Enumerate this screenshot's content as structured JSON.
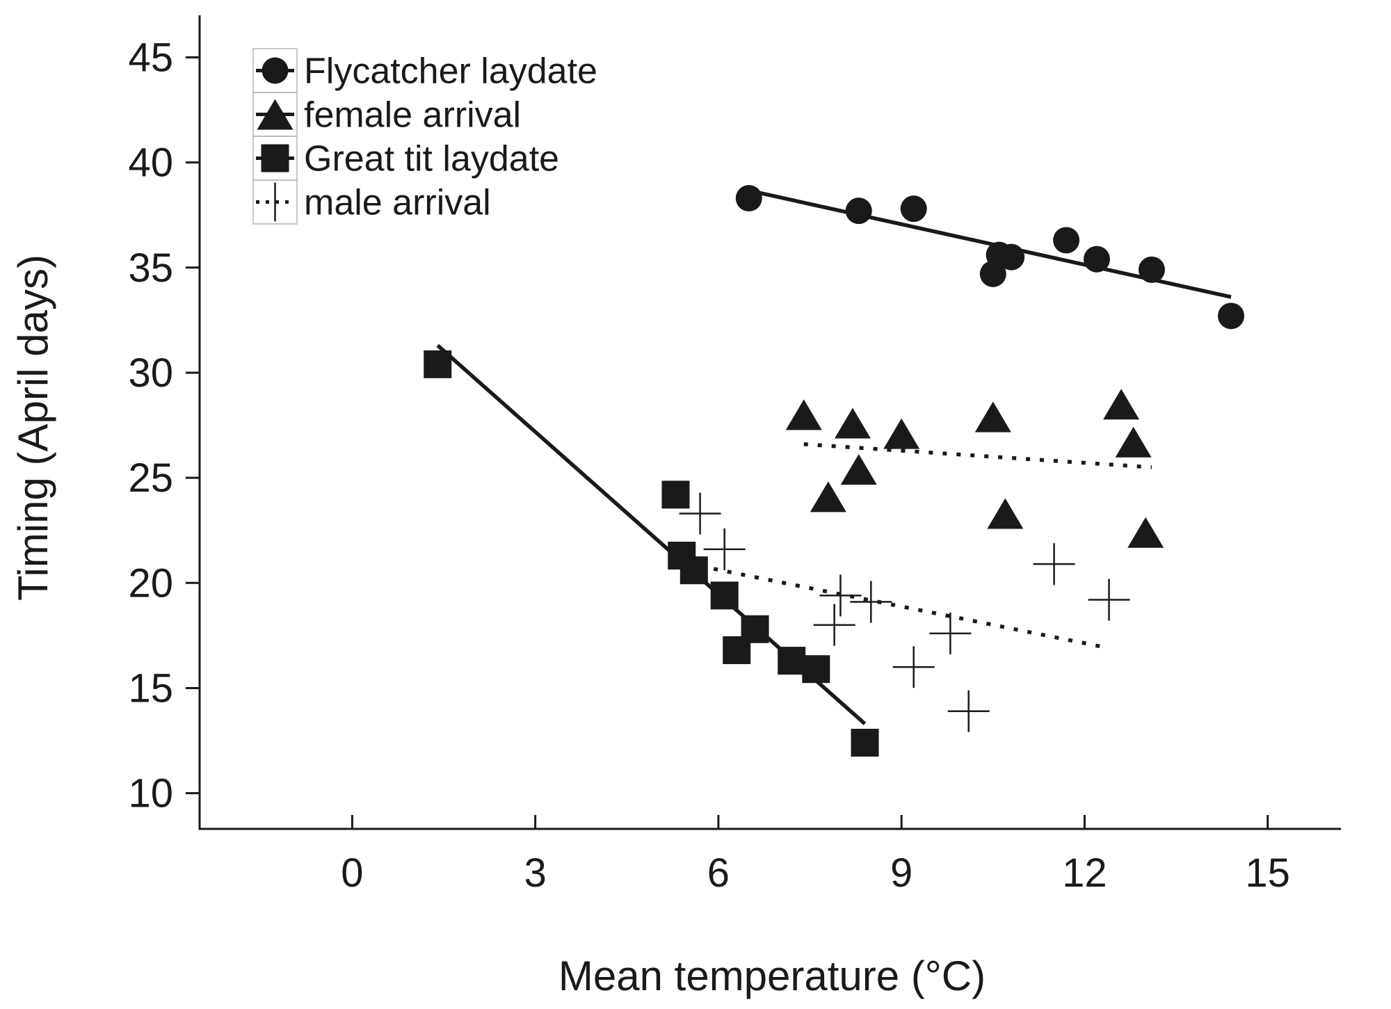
{
  "chart_data": {
    "type": "scatter",
    "xlabel": "Mean temperature (°C)",
    "ylabel": "Timing (April days)",
    "xlim": [
      -2.5,
      16.2
    ],
    "ylim": [
      8.3,
      47
    ],
    "xticks": [
      0,
      3,
      6,
      9,
      12,
      15
    ],
    "yticks": [
      10,
      15,
      20,
      25,
      30,
      35,
      40,
      45
    ],
    "legend_position": "top-left",
    "grid": false,
    "series": [
      {
        "name": "Flycatcher laydate",
        "marker": "circle",
        "line_style": "solid",
        "points": [
          {
            "x": 6.5,
            "y": 38.3
          },
          {
            "x": 8.3,
            "y": 37.7
          },
          {
            "x": 9.2,
            "y": 37.8
          },
          {
            "x": 10.5,
            "y": 34.7
          },
          {
            "x": 10.6,
            "y": 35.6
          },
          {
            "x": 10.8,
            "y": 35.5
          },
          {
            "x": 11.7,
            "y": 36.3
          },
          {
            "x": 12.2,
            "y": 35.4
          },
          {
            "x": 13.1,
            "y": 34.9
          },
          {
            "x": 14.4,
            "y": 32.7
          }
        ],
        "fit": {
          "x": [
            6.6,
            14.4
          ],
          "y": [
            38.6,
            33.6
          ]
        }
      },
      {
        "name": "female arrival",
        "marker": "triangle",
        "line_style": "dotted",
        "points": [
          {
            "x": 7.4,
            "y": 28.0
          },
          {
            "x": 7.8,
            "y": 24.1
          },
          {
            "x": 8.2,
            "y": 27.6
          },
          {
            "x": 8.3,
            "y": 25.4
          },
          {
            "x": 9.0,
            "y": 27.1
          },
          {
            "x": 10.5,
            "y": 27.9
          },
          {
            "x": 10.7,
            "y": 23.3
          },
          {
            "x": 12.6,
            "y": 28.5
          },
          {
            "x": 12.8,
            "y": 26.7
          },
          {
            "x": 13.0,
            "y": 22.4
          }
        ],
        "fit": {
          "x": [
            7.4,
            13.1
          ],
          "y": [
            26.6,
            25.5
          ]
        }
      },
      {
        "name": "Great tit laydate",
        "marker": "square",
        "line_style": "solid",
        "points": [
          {
            "x": 1.4,
            "y": 30.4
          },
          {
            "x": 5.3,
            "y": 24.2
          },
          {
            "x": 5.4,
            "y": 21.3
          },
          {
            "x": 5.6,
            "y": 20.6
          },
          {
            "x": 6.1,
            "y": 19.4
          },
          {
            "x": 6.3,
            "y": 16.8
          },
          {
            "x": 6.6,
            "y": 17.8
          },
          {
            "x": 7.2,
            "y": 16.3
          },
          {
            "x": 7.6,
            "y": 15.9
          },
          {
            "x": 8.4,
            "y": 12.4
          }
        ],
        "fit": {
          "x": [
            1.4,
            8.4
          ],
          "y": [
            31.3,
            13.3
          ]
        }
      },
      {
        "name": "male arrival",
        "marker": "plus",
        "line_style": "dotted",
        "points": [
          {
            "x": 5.7,
            "y": 23.3
          },
          {
            "x": 6.1,
            "y": 21.6
          },
          {
            "x": 7.9,
            "y": 18.0
          },
          {
            "x": 8.0,
            "y": 19.4
          },
          {
            "x": 8.5,
            "y": 19.1
          },
          {
            "x": 9.2,
            "y": 16.0
          },
          {
            "x": 9.8,
            "y": 17.6
          },
          {
            "x": 10.1,
            "y": 13.9
          },
          {
            "x": 11.5,
            "y": 20.9
          },
          {
            "x": 12.4,
            "y": 19.2
          }
        ],
        "fit": {
          "x": [
            5.7,
            12.4
          ],
          "y": [
            20.8,
            16.9
          ]
        }
      }
    ]
  }
}
